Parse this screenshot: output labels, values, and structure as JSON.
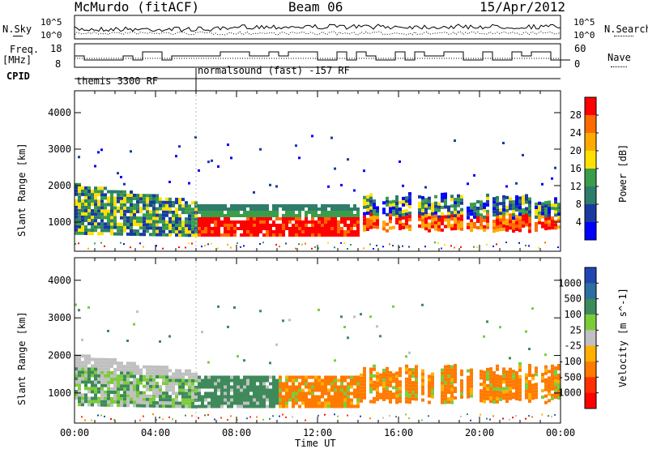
{
  "header": {
    "station": "McMurdo (fitACF)",
    "beam": "Beam 06",
    "date": "15/Apr/2012"
  },
  "strip_panels": {
    "nsky_label": "N.Sky",
    "nsearch_label": "N.Search",
    "nsky_ticks": [
      "10^5",
      "10^0"
    ],
    "nsearch_ticks": [
      "10^5",
      "10^0"
    ],
    "freq_label": "Freq.",
    "freq_unit": "[MHz]",
    "freq_ticks": [
      "18",
      "8"
    ],
    "nave_label": "Nave",
    "nave_ticks": [
      "60",
      "0"
    ],
    "cpid_label": "CPID",
    "cpid_segments": [
      "themis 3300 RF",
      "normalsound (fast) -157 RF"
    ]
  },
  "chart_data": [
    {
      "type": "heatmap",
      "name": "power",
      "ylabel": "Slant Range [km]",
      "xlabel": "Time UT",
      "x_ticks": [
        "00:00",
        "04:00",
        "08:00",
        "12:00",
        "16:00",
        "20:00",
        "00:00"
      ],
      "y_ticks": [
        1000,
        2000,
        3000,
        4000
      ],
      "ylim": [
        200,
        4600
      ],
      "xlim_hours": [
        0,
        24
      ],
      "colorbar": {
        "label": "Power [dB]",
        "ticks": [
          "28",
          "24",
          "20",
          "16",
          "12",
          "8",
          "4"
        ],
        "colors": [
          "#ff0000",
          "#ff6a00",
          "#ffaa00",
          "#ffe100",
          "#3a9d4a",
          "#2e7d6a",
          "#1a3aa0",
          "#0000ff"
        ]
      },
      "bands": [
        {
          "t": [
            0,
            6
          ],
          "r": [
            600,
            2000
          ],
          "level": "medium"
        },
        {
          "t": [
            6,
            14
          ],
          "r": [
            600,
            1500
          ],
          "level": "high"
        },
        {
          "t": [
            14,
            24
          ],
          "r": [
            700,
            1800
          ],
          "level": "mixed"
        },
        {
          "t": [
            0,
            4
          ],
          "r": [
            2700,
            3200
          ],
          "level": "low"
        }
      ]
    },
    {
      "type": "heatmap",
      "name": "velocity",
      "ylabel": "Slant Range [km]",
      "xlabel": "Time UT",
      "x_ticks": [
        "00:00",
        "04:00",
        "08:00",
        "12:00",
        "16:00",
        "20:00",
        "00:00"
      ],
      "y_ticks": [
        1000,
        2000,
        3000,
        4000
      ],
      "ylim": [
        200,
        4600
      ],
      "xlim_hours": [
        0,
        24
      ],
      "colorbar": {
        "label": "Velocity [m s^-1]",
        "ticks": [
          "1000",
          "500",
          "100",
          "25",
          "-25",
          "-100",
          "-500",
          "-1000"
        ],
        "colors": [
          "#2046b0",
          "#2c6fa0",
          "#3e8a5a",
          "#7ccc3a",
          "#c0c0c0",
          "#ffb000",
          "#ff7a00",
          "#ff3000",
          "#ff0000"
        ]
      },
      "bands": [
        {
          "t": [
            0,
            10
          ],
          "r": [
            600,
            2000
          ],
          "level": "positive"
        },
        {
          "t": [
            10,
            24
          ],
          "r": [
            600,
            1700
          ],
          "level": "negative"
        }
      ]
    }
  ]
}
